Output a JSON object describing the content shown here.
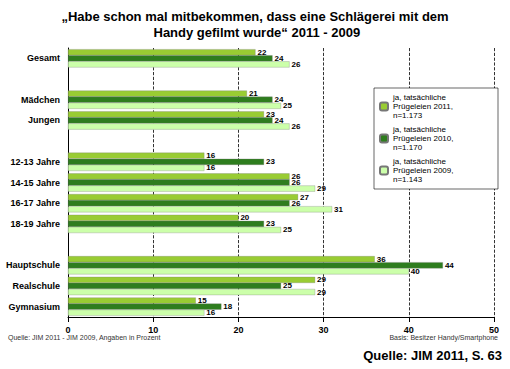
{
  "chart_data": {
    "type": "bar",
    "orientation": "horizontal",
    "title": "„Habe schon mal mitbekommen, dass eine Schlägerei mit dem Handy gefilmt wurde“ 2011 - 2009",
    "categories": [
      "Gesamt",
      null,
      "Mädchen",
      "Jungen",
      null,
      "12-13 Jahre",
      "14-15 Jahre",
      "16-17 Jahre",
      "18-19 Jahre",
      null,
      "Hauptschule",
      "Realschule",
      "Gymnasium"
    ],
    "series": [
      {
        "name": "ja, tatsächliche Prügeleien 2011, n=1.173",
        "color": "#99cc33",
        "values": [
          22,
          null,
          21,
          23,
          null,
          16,
          26,
          27,
          20,
          null,
          36,
          29,
          15
        ]
      },
      {
        "name": "ja, tatsächliche Prügeleien 2010, n=1.170",
        "color": "#2e7d1e",
        "values": [
          24,
          null,
          24,
          24,
          null,
          23,
          26,
          26,
          23,
          null,
          44,
          25,
          18
        ]
      },
      {
        "name": "ja, tatsächliche Prügeleien 2009, n=1.143",
        "color": "#ccffaa",
        "values": [
          26,
          null,
          25,
          26,
          null,
          16,
          29,
          31,
          25,
          null,
          40,
          29,
          16
        ]
      }
    ],
    "xlim": [
      0,
      50
    ],
    "xticks": [
      0,
      10,
      20,
      30,
      40,
      50
    ],
    "grid": true,
    "legend": "upper right",
    "data_labels": true,
    "annotations": [
      "Quelle: JIM 2011 - JIM 2009, Angaben in Prozent",
      "Basis: Besitzer Handy/Smartphone",
      "Quelle: JIM 2011, S. 63"
    ]
  }
}
